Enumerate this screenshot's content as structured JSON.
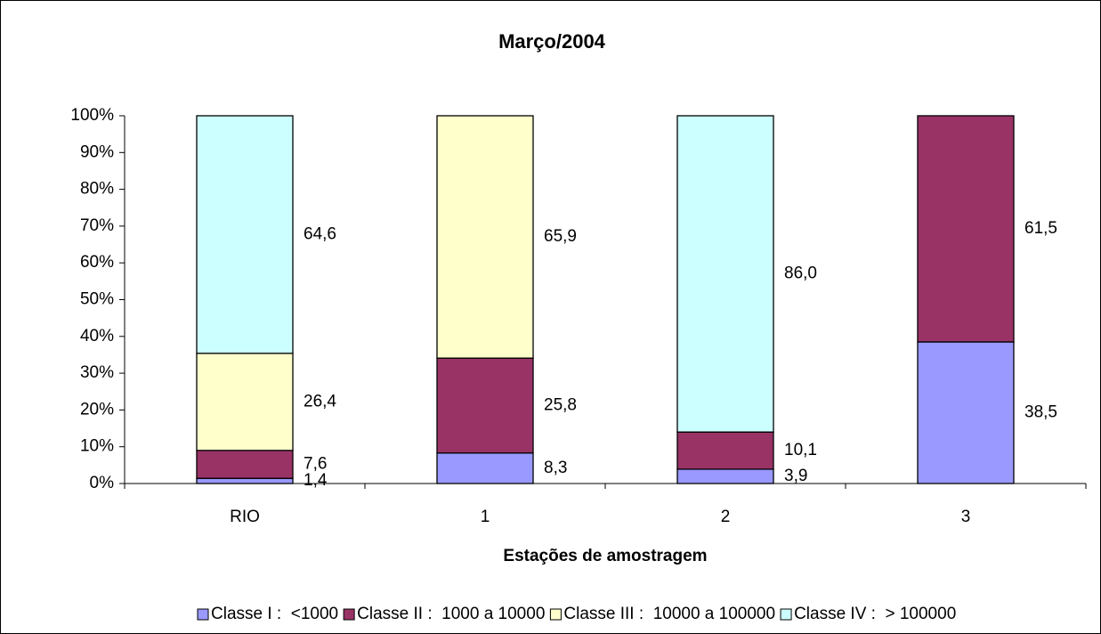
{
  "chart_data": {
    "type": "stacked-bar-100",
    "title": "Março/2004",
    "x_label": "Estações de amostragem",
    "categories": [
      "RIO",
      "1",
      "2",
      "3"
    ],
    "series": [
      {
        "name": "Classe I :  <1000",
        "color": "#9999ff",
        "values": [
          1.4,
          8.3,
          3.9,
          38.5
        ],
        "value_labels": [
          "1,4",
          "8,3",
          "3,9",
          "38,5"
        ]
      },
      {
        "name": "Classe II :  1000 a 10000",
        "color": "#993366",
        "values": [
          7.6,
          25.8,
          10.1,
          61.5
        ],
        "value_labels": [
          "7,6",
          "25,8",
          "10,1",
          "61,5"
        ]
      },
      {
        "name": "Classe III :  10000 a 100000",
        "color": "#ffffcc",
        "values": [
          26.4,
          65.9,
          null,
          null
        ],
        "value_labels": [
          "26,4",
          "65,9",
          null,
          null
        ]
      },
      {
        "name": "Classe IV :  > 100000",
        "color": "#ccffff",
        "values": [
          64.6,
          null,
          86.0,
          null
        ],
        "value_labels": [
          "64,6",
          null,
          "86,0",
          null
        ]
      }
    ],
    "ylim": [
      0,
      100
    ],
    "yticks": [
      {
        "value": 0,
        "label": "0%"
      },
      {
        "value": 10,
        "label": "10%"
      },
      {
        "value": 20,
        "label": "20%"
      },
      {
        "value": 30,
        "label": "30%"
      },
      {
        "value": 40,
        "label": "40%"
      },
      {
        "value": 50,
        "label": "50%"
      },
      {
        "value": 60,
        "label": "60%"
      },
      {
        "value": 70,
        "label": "70%"
      },
      {
        "value": 80,
        "label": "80%"
      },
      {
        "value": 90,
        "label": "90%"
      },
      {
        "value": 100,
        "label": "100%"
      }
    ],
    "grid": false,
    "legend": "bottom"
  }
}
